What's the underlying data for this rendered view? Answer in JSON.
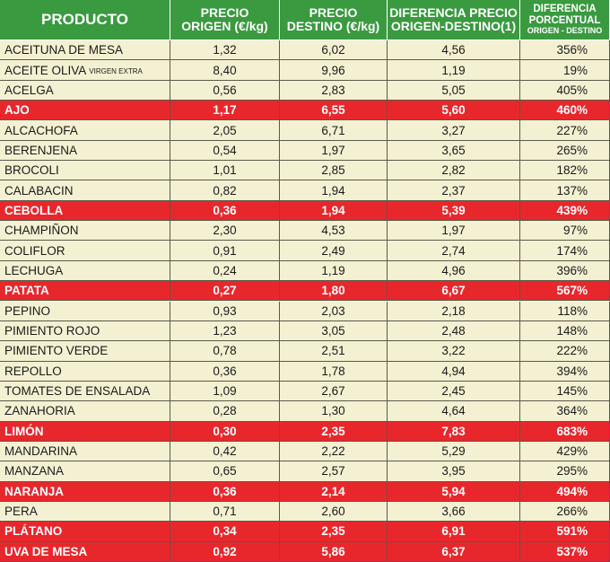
{
  "table": {
    "header": [
      [
        "PRODUCTO"
      ],
      [
        "PRECIO",
        "ORIGEN (€/kg)"
      ],
      [
        "PRECIO",
        "DESTINO (€/kg)"
      ],
      [
        "DIFERENCIA PRECIO",
        "ORIGEN-DESTINO(1)"
      ],
      [
        "DIFERENCIA",
        "PORCENTUAL",
        "ORIGEN - DESTINO"
      ]
    ],
    "rows": [
      {
        "product": "ACEITUNA  DE MESA",
        "values": [
          "1,32",
          "6,02",
          "4,56",
          "356%"
        ],
        "highlight": false
      },
      {
        "product": "ACEITE OLIVA",
        "product_note": "VIRGEN EXTRA",
        "values": [
          "8,40",
          "9,96",
          "1,19",
          "19%"
        ],
        "highlight": false
      },
      {
        "product": "ACELGA",
        "values": [
          "0,56",
          "2,83",
          "5,05",
          "405%"
        ],
        "highlight": false
      },
      {
        "product": "AJO",
        "values": [
          "1,17",
          "6,55",
          "5,60",
          "460%"
        ],
        "highlight": true
      },
      {
        "product": "ALCACHOFA",
        "values": [
          "2,05",
          "6,71",
          "3,27",
          "227%"
        ],
        "highlight": false
      },
      {
        "product": "BERENJENA",
        "values": [
          "0,54",
          "1,97",
          "3,65",
          "265%"
        ],
        "highlight": false
      },
      {
        "product": "BROCOLI",
        "values": [
          "1,01",
          "2,85",
          "2,82",
          "182%"
        ],
        "highlight": false
      },
      {
        "product": "CALABACIN",
        "values": [
          "0,82",
          "1,94",
          "2,37",
          "137%"
        ],
        "highlight": false
      },
      {
        "product": "CEBOLLA",
        "values": [
          "0,36",
          "1,94",
          "5,39",
          "439%"
        ],
        "highlight": true
      },
      {
        "product": "CHAMPIÑON",
        "values": [
          "2,30",
          "4,53",
          "1,97",
          "97%"
        ],
        "highlight": false
      },
      {
        "product": "COLIFLOR",
        "values": [
          "0,91",
          "2,49",
          "2,74",
          "174%"
        ],
        "highlight": false
      },
      {
        "product": "LECHUGA",
        "values": [
          "0,24",
          "1,19",
          "4,96",
          "396%"
        ],
        "highlight": false
      },
      {
        "product": "PATATA",
        "values": [
          "0,27",
          "1,80",
          "6,67",
          "567%"
        ],
        "highlight": true
      },
      {
        "product": "PEPINO",
        "values": [
          "0,93",
          "2,03",
          "2,18",
          "118%"
        ],
        "highlight": false
      },
      {
        "product": "PIMIENTO ROJO",
        "values": [
          "1,23",
          "3,05",
          "2,48",
          "148%"
        ],
        "highlight": false
      },
      {
        "product": "PIMIENTO VERDE",
        "values": [
          "0,78",
          "2,51",
          "3,22",
          "222%"
        ],
        "highlight": false
      },
      {
        "product": "REPOLLO",
        "values": [
          "0,36",
          "1,78",
          "4,94",
          "394%"
        ],
        "highlight": false
      },
      {
        "product": "TOMATES DE ENSALADA",
        "values": [
          "1,09",
          "2,67",
          "2,45",
          "145%"
        ],
        "highlight": false
      },
      {
        "product": "ZANAHORIA",
        "values": [
          "0,28",
          "1,30",
          "4,64",
          "364%"
        ],
        "highlight": false
      },
      {
        "product": "LIMÓN",
        "values": [
          "0,30",
          "2,35",
          "7,83",
          "683%"
        ],
        "highlight": true
      },
      {
        "product": "MANDARINA",
        "values": [
          "0,42",
          "2,22",
          "5,29",
          "429%"
        ],
        "highlight": false
      },
      {
        "product": "MANZANA",
        "values": [
          "0,65",
          "2,57",
          "3,95",
          "295%"
        ],
        "highlight": false
      },
      {
        "product": "NARANJA",
        "values": [
          "0,36",
          "2,14",
          "5,94",
          "494%"
        ],
        "highlight": true
      },
      {
        "product": "PERA",
        "values": [
          "0,71",
          "2,60",
          "3,66",
          "266%"
        ],
        "highlight": false
      },
      {
        "product": "PLÁTANO",
        "values": [
          "0,34",
          "2,35",
          "6,91",
          "591%"
        ],
        "highlight": true
      },
      {
        "product": "UVA DE MESA",
        "values": [
          "0,92",
          "5,86",
          "6,37",
          "537%"
        ],
        "highlight": true
      }
    ]
  }
}
